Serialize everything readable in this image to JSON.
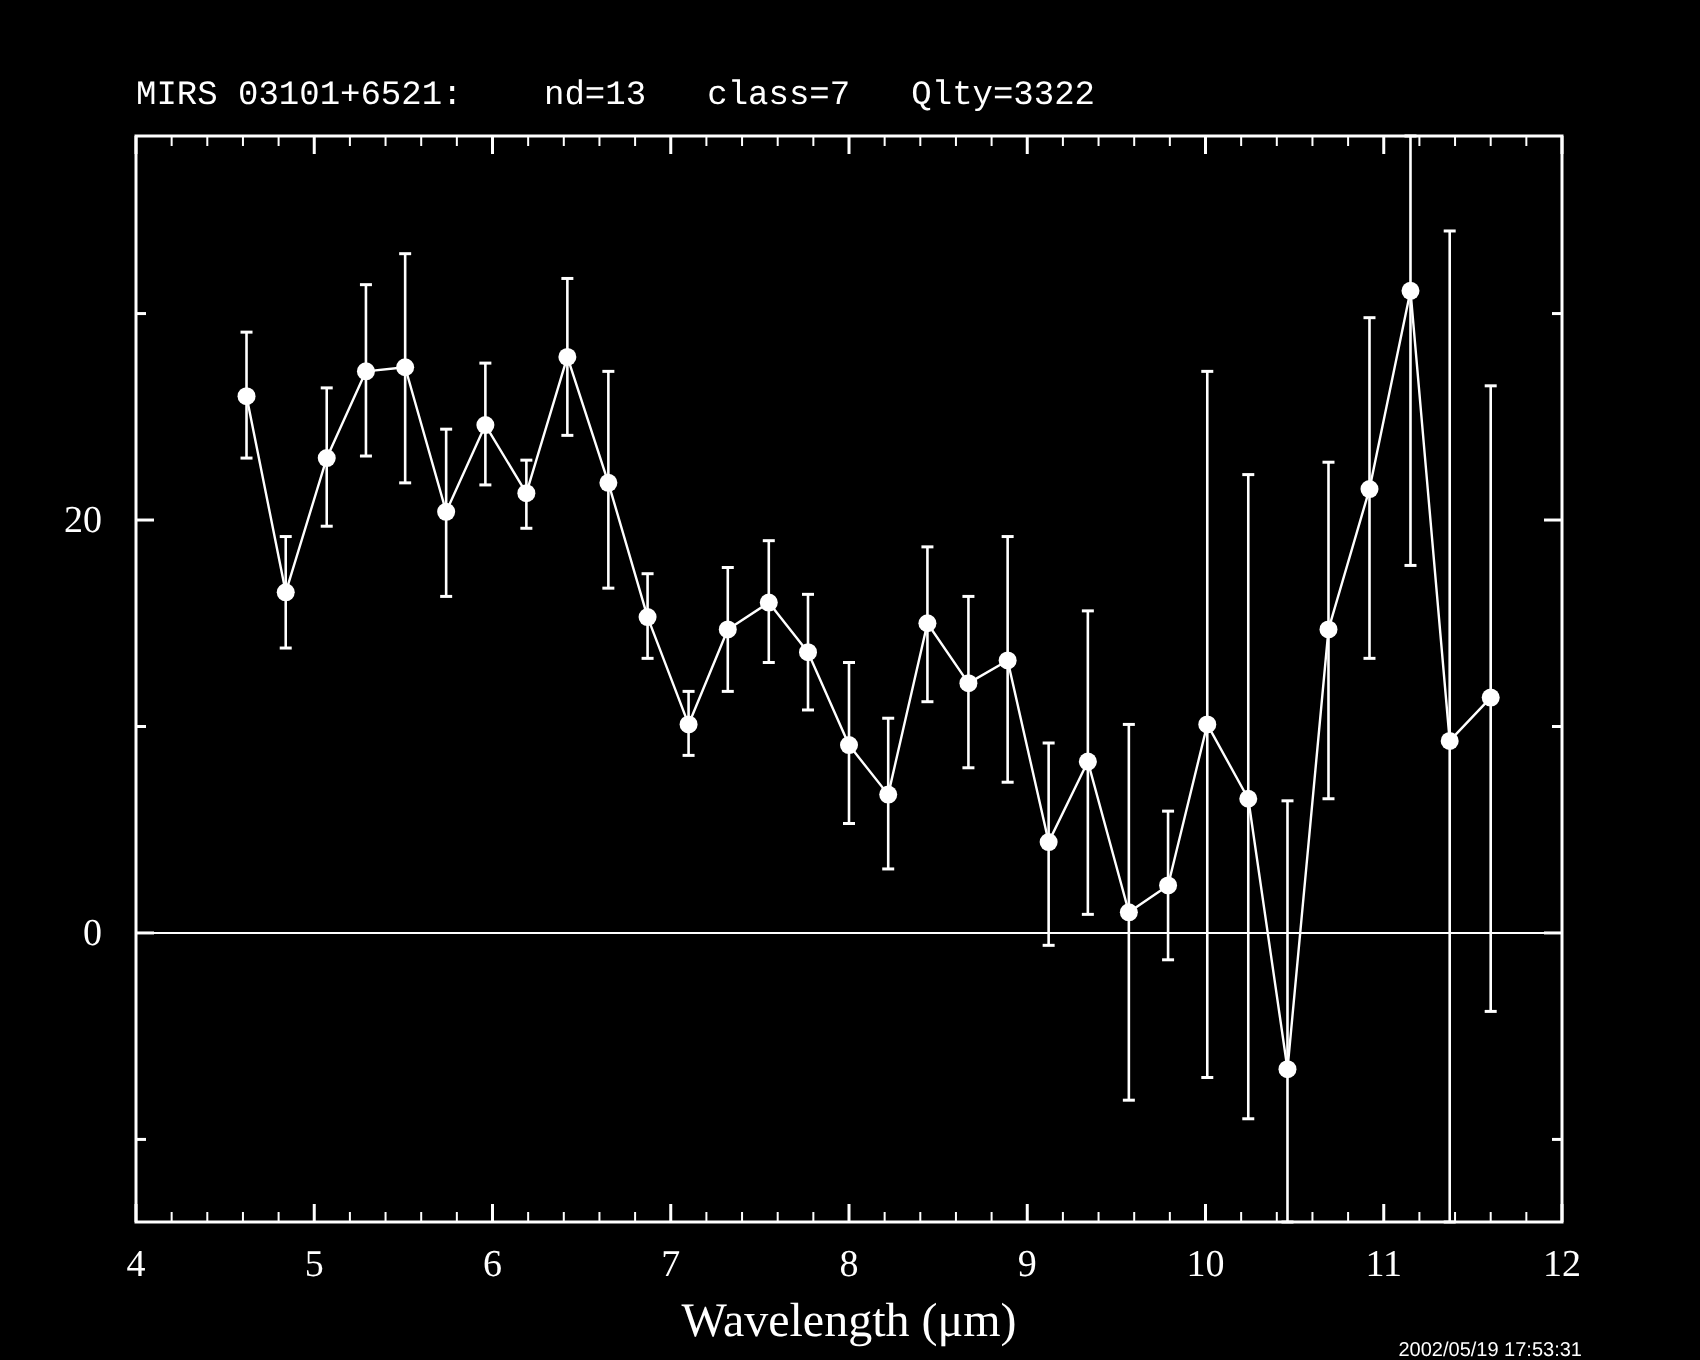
{
  "chart_data": {
    "type": "line",
    "title": "MIRS 03101+6521:    nd=13   class=7   Qlty=3322",
    "xlabel": "Wavelength (μm)",
    "annotations": [
      "2002/05/19 17:53:31"
    ],
    "x": [
      4.62,
      4.84,
      5.07,
      5.29,
      5.51,
      5.74,
      5.96,
      6.19,
      6.42,
      6.65,
      6.87,
      7.1,
      7.32,
      7.55,
      7.77,
      8.0,
      8.22,
      8.44,
      8.67,
      8.89,
      9.12,
      9.34,
      9.57,
      9.79,
      10.01,
      10.24,
      10.46,
      10.69,
      10.92,
      11.15,
      11.37,
      11.6
    ],
    "series": [
      {
        "color": "#ffffff",
        "values": [
          26.0,
          16.5,
          23.0,
          27.2,
          27.4,
          20.4,
          24.6,
          21.3,
          27.9,
          21.8,
          15.3,
          10.1,
          14.7,
          16.0,
          13.6,
          9.1,
          6.7,
          15.0,
          12.1,
          13.2,
          4.4,
          8.3,
          1.0,
          2.3,
          10.1,
          6.5,
          -6.6,
          14.7,
          21.5,
          31.1,
          9.3,
          11.4
        ],
        "errors": [
          [
            23.0,
            29.1
          ],
          [
            13.8,
            19.2
          ],
          [
            19.7,
            26.4
          ],
          [
            23.1,
            31.4
          ],
          [
            21.8,
            32.9
          ],
          [
            16.3,
            24.4
          ],
          [
            21.7,
            27.6
          ],
          [
            19.6,
            22.9
          ],
          [
            24.1,
            31.7
          ],
          [
            16.7,
            27.2
          ],
          [
            13.3,
            17.4
          ],
          [
            8.6,
            11.7
          ],
          [
            11.7,
            17.7
          ],
          [
            13.1,
            19.0
          ],
          [
            10.8,
            16.4
          ],
          [
            5.3,
            13.1
          ],
          [
            3.1,
            10.4
          ],
          [
            11.2,
            18.7
          ],
          [
            8.0,
            16.3
          ],
          [
            7.3,
            19.2
          ],
          [
            -0.6,
            9.2
          ],
          [
            0.9,
            15.6
          ],
          [
            -8.1,
            10.1
          ],
          [
            -1.3,
            5.9
          ],
          [
            -7.0,
            27.2
          ],
          [
            -9.0,
            22.2
          ],
          [
            -14,
            6.4
          ],
          [
            6.5,
            22.8
          ],
          [
            13.3,
            29.8
          ],
          [
            17.8,
            38.6
          ],
          [
            -14,
            34.0
          ],
          [
            -3.8,
            26.5
          ]
        ]
      }
    ],
    "xlim": [
      4,
      12
    ],
    "ylim": [
      -14,
      38.6
    ],
    "xticks": [
      4,
      5,
      6,
      7,
      8,
      9,
      10,
      11,
      12
    ],
    "yticks": [
      {
        "value": -10,
        "label": null
      },
      0,
      {
        "value": 10,
        "label": null
      },
      20,
      {
        "value": 30,
        "label": null
      }
    ],
    "ref_lines": [
      {
        "axis": "y",
        "value": 0,
        "color": "#ffffff"
      }
    ],
    "marker": "circle",
    "line_style": "solid",
    "grid": false
  }
}
